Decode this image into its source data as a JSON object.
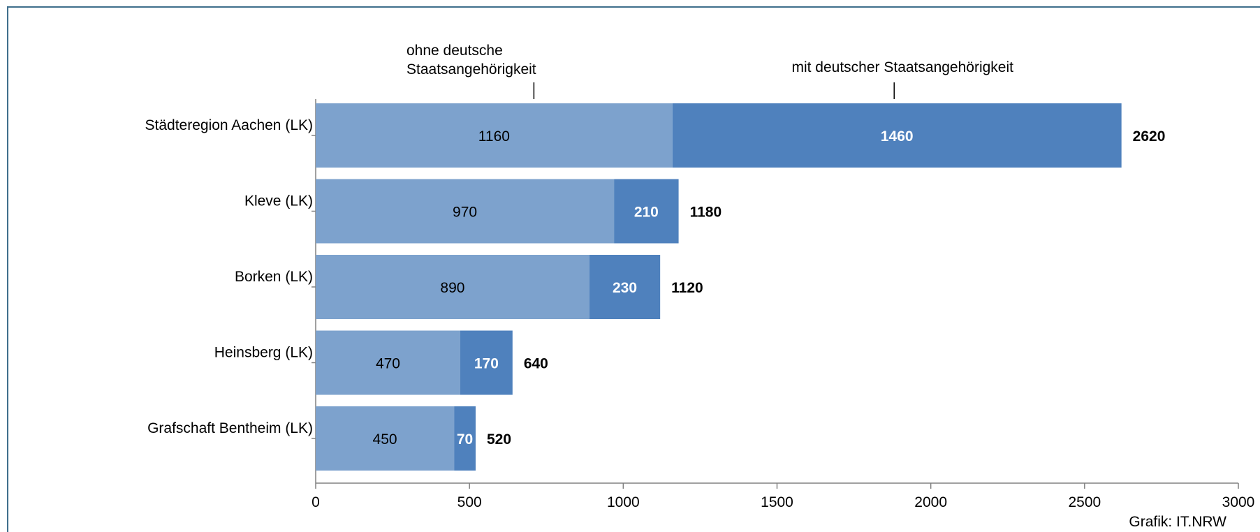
{
  "credit": "Grafik: IT.NRW",
  "colors": {
    "series1": "#7da2cd",
    "series2": "#4f81bd",
    "axis": "#808080"
  },
  "chart_data": {
    "type": "bar",
    "orientation": "horizontal",
    "stacked": true,
    "categories": [
      "Städteregion Aachen (LK)",
      "Kleve (LK)",
      "Borken (LK)",
      "Heinsberg (LK)",
      "Grafschaft Bentheim (LK)"
    ],
    "series": [
      {
        "name": "ohne deutsche Staatsangehörigkeit",
        "values": [
          1160,
          970,
          890,
          470,
          450
        ]
      },
      {
        "name": "mit deutscher Staatsangehörigkeit",
        "values": [
          1460,
          210,
          230,
          170,
          70
        ]
      }
    ],
    "totals": [
      2620,
      1180,
      1120,
      640,
      520
    ],
    "xlim": [
      0,
      3000
    ],
    "xticks": [
      0,
      500,
      1000,
      1500,
      2000,
      2500,
      3000
    ],
    "series1_label_lines": [
      "ohne deutsche",
      "Staatsangehörigkeit"
    ],
    "series2_label_lines": [
      "mit deutscher Staatsangehörigkeit"
    ],
    "grid": false,
    "legend": "inline annotations above first bar"
  }
}
